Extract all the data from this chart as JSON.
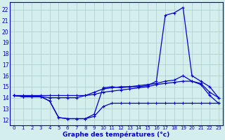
{
  "xlabel": "Graphe des températures (°c)",
  "hours": [
    0,
    1,
    2,
    3,
    4,
    5,
    6,
    7,
    8,
    9,
    10,
    11,
    12,
    13,
    14,
    15,
    16,
    17,
    18,
    19,
    20,
    21,
    22,
    23
  ],
  "line1_y": [
    14.2,
    14.1,
    14.1,
    14.1,
    13.7,
    12.2,
    12.1,
    12.1,
    12.1,
    12.5,
    14.9,
    15.0,
    14.9,
    15.0,
    15.0,
    15.1,
    15.5,
    21.5,
    21.7,
    22.2,
    16.0,
    15.5,
    15.0,
    14.0
  ],
  "line2_y": [
    14.2,
    14.1,
    14.1,
    14.1,
    13.7,
    12.2,
    12.1,
    12.1,
    12.1,
    12.3,
    13.2,
    13.5,
    13.5,
    13.5,
    13.5,
    13.5,
    13.5,
    13.5,
    13.5,
    13.5,
    13.5,
    13.5,
    13.5,
    13.5
  ],
  "line3_y": [
    14.2,
    14.2,
    14.2,
    14.2,
    14.2,
    14.2,
    14.2,
    14.2,
    14.2,
    14.3,
    14.5,
    14.6,
    14.7,
    14.8,
    14.9,
    15.0,
    15.2,
    15.3,
    15.4,
    15.5,
    15.5,
    15.3,
    14.5,
    14.0
  ],
  "line4_y": [
    14.2,
    14.1,
    14.1,
    14.1,
    14.0,
    14.0,
    14.0,
    14.0,
    14.2,
    14.5,
    14.8,
    14.9,
    15.0,
    15.0,
    15.1,
    15.2,
    15.3,
    15.5,
    15.6,
    16.0,
    15.5,
    15.2,
    14.2,
    13.5
  ],
  "ylim_min": 11.5,
  "ylim_max": 22.7,
  "yticks": [
    12,
    13,
    14,
    15,
    16,
    17,
    18,
    19,
    20,
    21,
    22
  ],
  "line_color": "#0000cc",
  "bg_color": "#d4eeed",
  "grid_color": "#a8cccc"
}
